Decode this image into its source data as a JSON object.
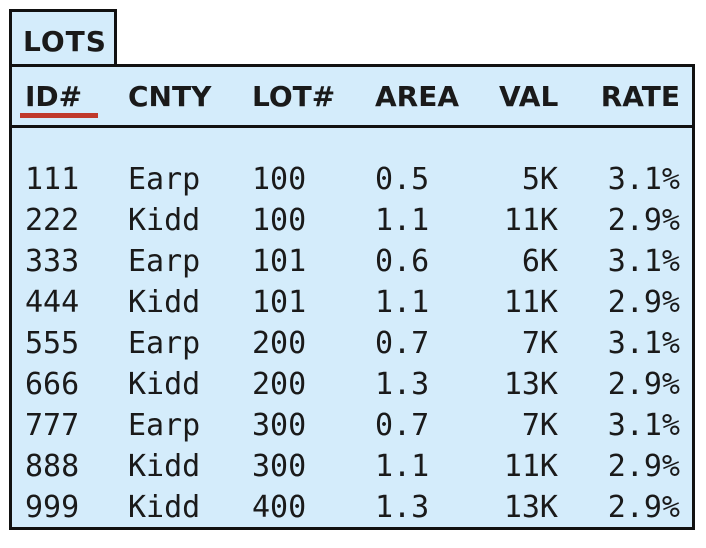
{
  "table": {
    "title": "LOTS",
    "columns": [
      "ID#",
      "CNTY",
      "LOT#",
      "AREA",
      "VAL",
      "RATE"
    ],
    "key_column": "ID#",
    "rows": [
      [
        "111",
        "Earp",
        "100",
        "0.5",
        "5K",
        "3.1%"
      ],
      [
        "222",
        "Kidd",
        "100",
        "1.1",
        "11K",
        "2.9%"
      ],
      [
        "333",
        "Earp",
        "101",
        "0.6",
        "6K",
        "3.1%"
      ],
      [
        "444",
        "Kidd",
        "101",
        "1.1",
        "11K",
        "2.9%"
      ],
      [
        "555",
        "Earp",
        "200",
        "0.7",
        "7K",
        "3.1%"
      ],
      [
        "666",
        "Kidd",
        "200",
        "1.3",
        "13K",
        "2.9%"
      ],
      [
        "777",
        "Earp",
        "300",
        "0.7",
        "7K",
        "3.1%"
      ],
      [
        "888",
        "Kidd",
        "300",
        "1.1",
        "11K",
        "2.9%"
      ],
      [
        "999",
        "Kidd",
        "400",
        "1.3",
        "13K",
        "2.9%"
      ]
    ]
  },
  "colors": {
    "panel_background": "#d4ecfb",
    "border": "#111111",
    "key_underline": "#c0392b",
    "text": "#1a1a1a"
  }
}
